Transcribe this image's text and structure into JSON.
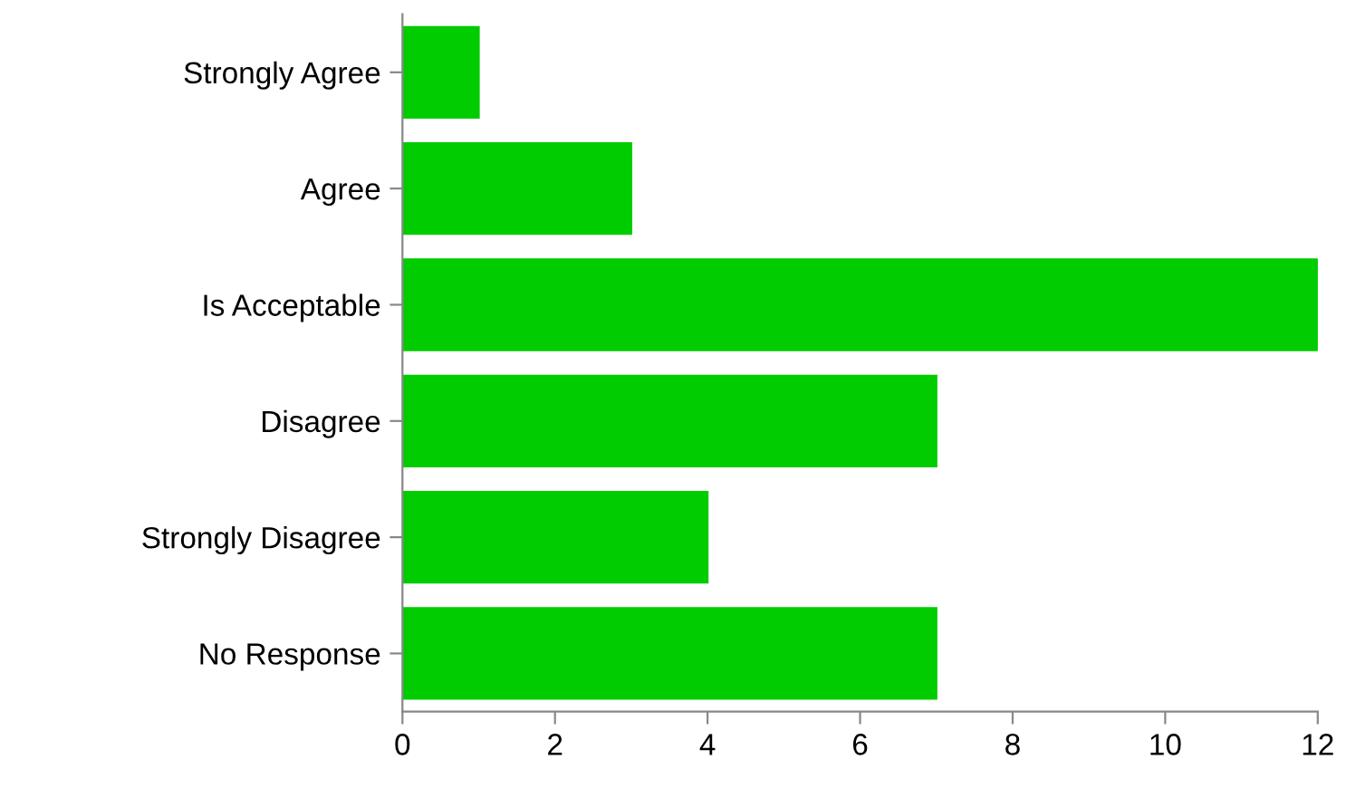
{
  "chart_data": {
    "type": "bar",
    "orientation": "horizontal",
    "categories": [
      "Strongly Agree",
      "Agree",
      "Is Acceptable",
      "Disagree",
      "Strongly Disagree",
      "No Response"
    ],
    "values": [
      1,
      3,
      12,
      7,
      4,
      7
    ],
    "color": "#00cc00",
    "xlim": [
      0,
      12
    ],
    "xticks": [
      0,
      2,
      4,
      6,
      8,
      10,
      12
    ],
    "grid": false
  }
}
